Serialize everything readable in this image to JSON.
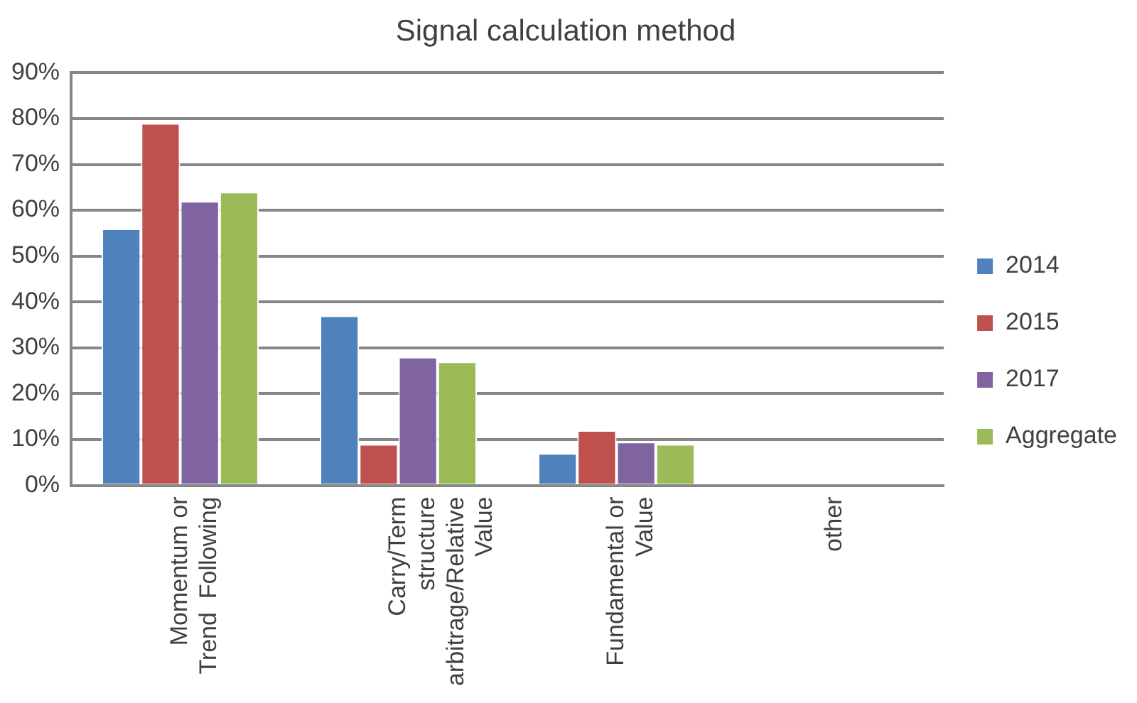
{
  "chart_data": {
    "type": "bar",
    "title": "Signal calculation method",
    "categories": [
      "Momentum or\nTrend  Following",
      "Carry/Term\nstructure\narbitrage/Relative\nValue",
      "Fundamental or\nValue",
      "other"
    ],
    "series": [
      {
        "name": "2014",
        "color": "#4f81bd",
        "values": [
          56,
          37,
          7,
          0
        ]
      },
      {
        "name": "2015",
        "color": "#c0504d",
        "values": [
          79,
          9,
          12,
          0
        ]
      },
      {
        "name": "2017",
        "color": "#8064a2",
        "values": [
          62,
          28,
          9.5,
          0
        ]
      },
      {
        "name": "Aggregate",
        "color": "#9bbb59",
        "values": [
          64,
          27,
          9,
          0
        ]
      }
    ],
    "ylim": [
      0,
      90
    ],
    "yticks": [
      {
        "value": 0,
        "label": "0%"
      },
      {
        "value": 10,
        "label": "10%"
      },
      {
        "value": 20,
        "label": "20%"
      },
      {
        "value": 30,
        "label": "30%"
      },
      {
        "value": 40,
        "label": "40%"
      },
      {
        "value": 50,
        "label": "50%"
      },
      {
        "value": 60,
        "label": "60%"
      },
      {
        "value": 70,
        "label": "70%"
      },
      {
        "value": 80,
        "label": "80%"
      },
      {
        "value": 90,
        "label": "90%"
      }
    ],
    "grid": "y",
    "legend": "right"
  }
}
